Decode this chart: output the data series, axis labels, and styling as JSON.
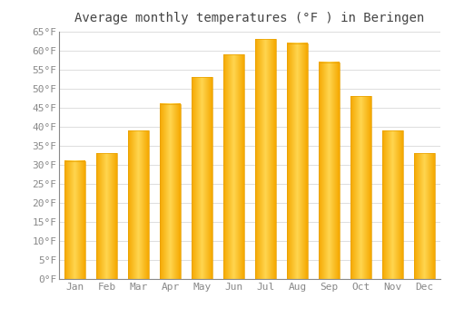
{
  "title": "Average monthly temperatures (°F ) in Beringen",
  "months": [
    "Jan",
    "Feb",
    "Mar",
    "Apr",
    "May",
    "Jun",
    "Jul",
    "Aug",
    "Sep",
    "Oct",
    "Nov",
    "Dec"
  ],
  "values": [
    31,
    33,
    39,
    46,
    53,
    59,
    63,
    62,
    57,
    48,
    39,
    33
  ],
  "bar_color_left": "#F5A800",
  "bar_color_center": "#FFD54F",
  "bar_color_right": "#F5A800",
  "background_color": "#FFFFFF",
  "grid_color": "#DDDDDD",
  "ylim": [
    0,
    65
  ],
  "yticks": [
    0,
    5,
    10,
    15,
    20,
    25,
    30,
    35,
    40,
    45,
    50,
    55,
    60,
    65
  ],
  "title_fontsize": 10,
  "tick_fontsize": 8,
  "tick_color": "#888888",
  "font_family": "monospace",
  "bar_width": 0.65,
  "figsize": [
    5.0,
    3.5
  ],
  "dpi": 100
}
